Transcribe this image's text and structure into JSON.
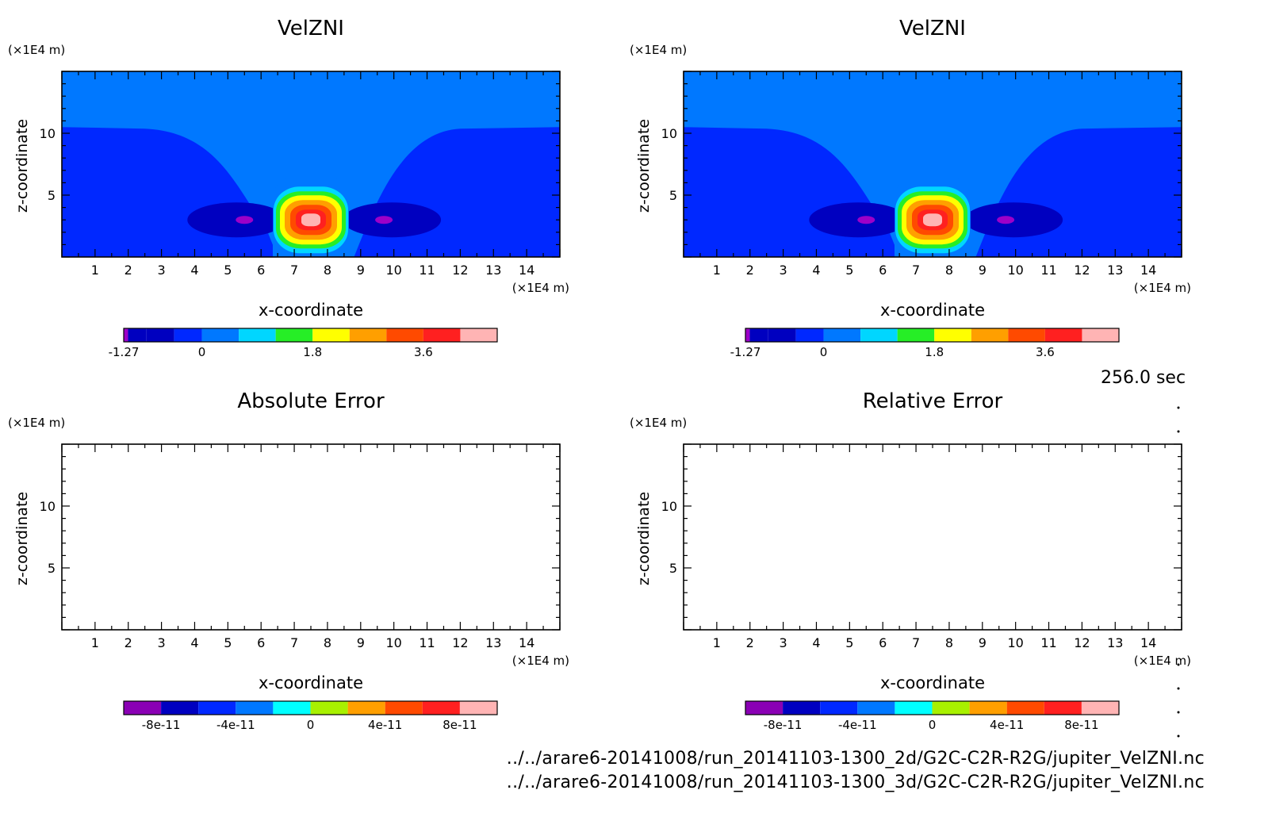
{
  "figure": {
    "timestamp": "256.0 sec",
    "files": [
      "../../arare6-20141008/run_20141103-1300_2d/G2C-C2R-R2G/jupiter_VelZNI.nc",
      "../../arare6-20141008/run_20141103-1300_3d/G2C-C2R-R2G/jupiter_VelZNI.nc"
    ]
  },
  "chart_data": [
    {
      "type": "heatmap",
      "title": "VelZNI",
      "xlabel": "x-coordinate",
      "ylabel": "z-coordinate",
      "x_unit": "(×1E4 m)",
      "y_unit": "(×1E4 m)",
      "xlim": [
        0,
        15
      ],
      "ylim": [
        0,
        15
      ],
      "xticks": [
        1,
        2,
        3,
        4,
        5,
        6,
        7,
        8,
        9,
        10,
        11,
        12,
        13,
        14
      ],
      "yticks": [
        5,
        10
      ],
      "field": {
        "background_upper": 0.5,
        "background_lower_z_top": 10.5,
        "background_lower": 0.0,
        "updraft": {
          "x_center": 7.5,
          "z_center": 3.0,
          "max": 4.2
        },
        "downdrafts": [
          {
            "x_center": 5.5,
            "z_center": 3.0,
            "min": -1.27
          },
          {
            "x_center": 9.7,
            "z_center": 3.0,
            "min": -1.27
          }
        ]
      },
      "colorbar": {
        "levels": [
          -1.27,
          -0.9,
          0,
          0.6,
          1.2,
          1.8,
          2.4,
          3.0,
          3.6,
          4.2,
          4.8
        ],
        "colors": [
          "#9d00c8",
          "#0000c0",
          "#0028ff",
          "#0078ff",
          "#00d6ff",
          "#26ee26",
          "#ffff00",
          "#ff9f00",
          "#ff4a00",
          "#ff2020",
          "#ffb4b4"
        ],
        "tick_labels": [
          "-1.27",
          "0",
          "1.8",
          "3.6"
        ],
        "tick_values": [
          -1.27,
          0,
          1.8,
          3.6
        ]
      }
    },
    {
      "type": "heatmap",
      "title": "VelZNI",
      "xlabel": "x-coordinate",
      "ylabel": "z-coordinate",
      "x_unit": "(×1E4 m)",
      "y_unit": "(×1E4 m)",
      "xlim": [
        0,
        15
      ],
      "ylim": [
        0,
        15
      ],
      "xticks": [
        1,
        2,
        3,
        4,
        5,
        6,
        7,
        8,
        9,
        10,
        11,
        12,
        13,
        14
      ],
      "yticks": [
        5,
        10
      ],
      "field": {
        "background_upper": 0.5,
        "background_lower_z_top": 10.5,
        "background_lower": 0.0,
        "updraft": {
          "x_center": 7.5,
          "z_center": 3.0,
          "max": 4.2
        },
        "downdrafts": [
          {
            "x_center": 5.5,
            "z_center": 3.0,
            "min": -1.27
          },
          {
            "x_center": 9.7,
            "z_center": 3.0,
            "min": -1.27
          }
        ]
      },
      "colorbar": {
        "levels": [
          -1.27,
          -0.9,
          0,
          0.6,
          1.2,
          1.8,
          2.4,
          3.0,
          3.6,
          4.2,
          4.8
        ],
        "colors": [
          "#9d00c8",
          "#0000c0",
          "#0028ff",
          "#0078ff",
          "#00d6ff",
          "#26ee26",
          "#ffff00",
          "#ff9f00",
          "#ff4a00",
          "#ff2020",
          "#ffb4b4"
        ],
        "tick_labels": [
          "-1.27",
          "0",
          "1.8",
          "3.6"
        ],
        "tick_values": [
          -1.27,
          0,
          1.8,
          3.6
        ]
      }
    },
    {
      "type": "heatmap",
      "title": "Absolute Error",
      "xlabel": "x-coordinate",
      "ylabel": "z-coordinate",
      "x_unit": "(×1E4 m)",
      "y_unit": "(×1E4 m)",
      "xlim": [
        0,
        15
      ],
      "ylim": [
        0,
        15
      ],
      "xticks": [
        1,
        2,
        3,
        4,
        5,
        6,
        7,
        8,
        9,
        10,
        11,
        12,
        13,
        14
      ],
      "yticks": [
        5,
        10
      ],
      "field": null,
      "colorbar": {
        "colors": [
          "#8a00b4",
          "#0000c0",
          "#0028ff",
          "#0078ff",
          "#00ffff",
          "#a8f000",
          "#ff9f00",
          "#ff4a00",
          "#ff2020",
          "#ffb4b4"
        ],
        "tick_labels": [
          "-8e-11",
          "-4e-11",
          "0",
          "4e-11",
          "8e-11"
        ],
        "tick_values": [
          -8e-11,
          -4e-11,
          0,
          4e-11,
          8e-11
        ],
        "range": [
          -1e-10,
          1e-10
        ]
      }
    },
    {
      "type": "heatmap",
      "title": "Relative Error",
      "xlabel": "x-coordinate",
      "ylabel": "z-coordinate",
      "x_unit": "(×1E4 m)",
      "y_unit": "(×1E4 m)",
      "xlim": [
        0,
        15
      ],
      "ylim": [
        0,
        15
      ],
      "xticks": [
        1,
        2,
        3,
        4,
        5,
        6,
        7,
        8,
        9,
        10,
        11,
        12,
        13,
        14
      ],
      "yticks": [
        5,
        10
      ],
      "field": null,
      "colorbar": {
        "colors": [
          "#8a00b4",
          "#0000c0",
          "#0028ff",
          "#0078ff",
          "#00ffff",
          "#a8f000",
          "#ff9f00",
          "#ff4a00",
          "#ff2020",
          "#ffb4b4"
        ],
        "tick_labels": [
          "-8e-11",
          "-4e-11",
          "0",
          "4e-11",
          "8e-11"
        ],
        "tick_values": [
          -8e-11,
          -4e-11,
          0,
          4e-11,
          8e-11
        ],
        "range": [
          -1e-10,
          1e-10
        ]
      }
    }
  ]
}
